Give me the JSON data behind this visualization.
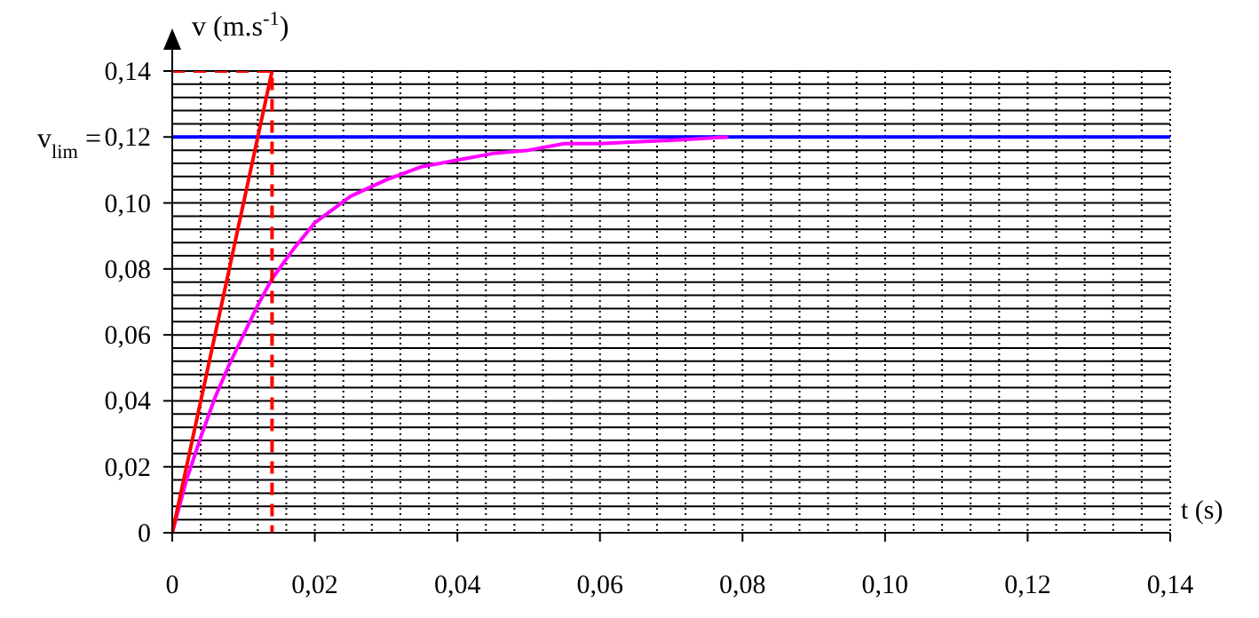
{
  "chart_data": {
    "type": "line",
    "xlabel": "t (s)",
    "ylabel": "v (m.s$^{-1}$)",
    "xlim": [
      0,
      0.14
    ],
    "ylim": [
      0,
      0.14
    ],
    "xticks": [
      0,
      {
        "value": 0.004,
        "label": null
      },
      {
        "value": 0.008,
        "label": null
      },
      {
        "value": 0.012,
        "label": null
      },
      {
        "value": 0.016,
        "label": null
      },
      {
        "value": 0.02,
        "label": "0,02"
      },
      {
        "value": 0.024,
        "label": null
      },
      {
        "value": 0.028,
        "label": null
      },
      {
        "value": 0.032,
        "label": null
      },
      {
        "value": 0.036,
        "label": null
      },
      {
        "value": 0.04,
        "label": "0,04"
      },
      {
        "value": 0.044,
        "label": null
      },
      {
        "value": 0.048,
        "label": null
      },
      {
        "value": 0.052,
        "label": null
      },
      {
        "value": 0.056,
        "label": null
      },
      {
        "value": 0.06,
        "label": "0,06"
      },
      {
        "value": 0.064,
        "label": null
      },
      {
        "value": 0.068,
        "label": null
      },
      {
        "value": 0.072,
        "label": null
      },
      {
        "value": 0.076,
        "label": null
      },
      {
        "value": 0.08,
        "label": "0,08"
      },
      {
        "value": 0.084,
        "label": null
      },
      {
        "value": 0.088,
        "label": null
      },
      {
        "value": 0.092,
        "label": null
      },
      {
        "value": 0.096,
        "label": null
      },
      {
        "value": 0.1,
        "label": "0,10"
      },
      {
        "value": 0.104,
        "label": null
      },
      {
        "value": 0.108,
        "label": null
      },
      {
        "value": 0.112,
        "label": null
      },
      {
        "value": 0.116,
        "label": null
      },
      {
        "value": 0.12,
        "label": "0,12"
      },
      {
        "value": 0.124,
        "label": null
      },
      {
        "value": 0.128,
        "label": null
      },
      {
        "value": 0.132,
        "label": null
      },
      {
        "value": 0.136,
        "label": null
      },
      {
        "value": 0.14,
        "label": "0,14"
      }
    ],
    "yticks": [
      0,
      {
        "value": 0.004,
        "label": null
      },
      {
        "value": 0.008,
        "label": null
      },
      {
        "value": 0.012,
        "label": null
      },
      {
        "value": 0.016,
        "label": null
      },
      {
        "value": 0.02,
        "label": "0,02"
      },
      {
        "value": 0.024,
        "label": null
      },
      {
        "value": 0.028,
        "label": null
      },
      {
        "value": 0.032,
        "label": null
      },
      {
        "value": 0.036,
        "label": null
      },
      {
        "value": 0.04,
        "label": "0,04"
      },
      {
        "value": 0.044,
        "label": null
      },
      {
        "value": 0.048,
        "label": null
      },
      {
        "value": 0.052,
        "label": null
      },
      {
        "value": 0.056,
        "label": null
      },
      {
        "value": 0.06,
        "label": "0,06"
      },
      {
        "value": 0.064,
        "label": null
      },
      {
        "value": 0.068,
        "label": null
      },
      {
        "value": 0.072,
        "label": null
      },
      {
        "value": 0.076,
        "label": null
      },
      {
        "value": 0.08,
        "label": "0,08"
      },
      {
        "value": 0.084,
        "label": null
      },
      {
        "value": 0.088,
        "label": null
      },
      {
        "value": 0.092,
        "label": null
      },
      {
        "value": 0.096,
        "label": null
      },
      {
        "value": 0.1,
        "label": "0,10"
      },
      {
        "value": 0.104,
        "label": null
      },
      {
        "value": 0.108,
        "label": null
      },
      {
        "value": 0.112,
        "label": null
      },
      {
        "value": 0.116,
        "label": null
      },
      {
        "value": 0.12,
        "label": "0,12"
      },
      {
        "value": 0.124,
        "label": null
      },
      {
        "value": 0.128,
        "label": null
      },
      {
        "value": 0.132,
        "label": null
      },
      {
        "value": 0.136,
        "label": null
      },
      {
        "value": 0.14,
        "label": "0,14"
      }
    ],
    "grid": true,
    "series": [
      {
        "color": "#ff00ff",
        "x": [
          0,
          0.002,
          0.004,
          0.006,
          0.008,
          0.01,
          0.012,
          0.014,
          0.017,
          0.02,
          0.025,
          0.03,
          0.035,
          0.04,
          0.045,
          0.05,
          0.055,
          0.06,
          0.065,
          0.07,
          0.078
        ],
        "values": [
          0,
          0.016,
          0.029,
          0.041,
          0.051,
          0.06,
          0.069,
          0.077,
          0.086,
          0.094,
          0.102,
          0.107,
          0.111,
          0.113,
          0.115,
          0.116,
          0.118,
          0.118,
          0.1185,
          0.119,
          0.12
        ]
      },
      {
        "color": "#ff0000",
        "x": [
          0,
          0.014
        ],
        "values": [
          0,
          0.14
        ]
      },
      {
        "color": "#ff0000",
        "line_style": "dashed",
        "x": [
          0,
          0.014,
          0.014
        ],
        "values": [
          0.14,
          0.14,
          0
        ]
      }
    ],
    "ref_lines": [
      {
        "axis": "y",
        "value": 0.12,
        "label": "v$_{lim}$ =",
        "color": "#0000ff"
      }
    ]
  }
}
